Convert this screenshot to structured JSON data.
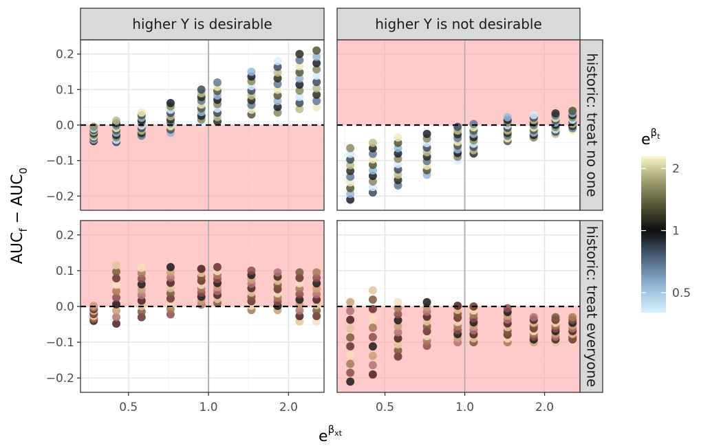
{
  "chart_data": {
    "type": "scatter",
    "facet_columns": [
      "higher Y is desirable",
      "higher Y is not desirable"
    ],
    "facet_rows": [
      "historic: treat no one",
      "historic: treat everyone"
    ],
    "xlabel": {
      "base": "e",
      "sup": "βxt",
      "sup_base": "β",
      "sup_sub": "xt"
    },
    "ylabel": {
      "parts": [
        "AUC",
        "f",
        " − AUC",
        "0"
      ]
    },
    "x_scale": "log",
    "xlim": [
      0.33,
      2.72
    ],
    "ylim": [
      -0.24,
      0.24
    ],
    "x_breaks": [
      0.5,
      1.0,
      2.0
    ],
    "x_tick_labels": [
      "0.5",
      "1.0",
      "2.0"
    ],
    "y_breaks": [
      -0.2,
      -0.1,
      0.0,
      0.1,
      0.2
    ],
    "y_tick_labels": [
      "−0.2",
      "−0.1",
      "0.0",
      "0.1",
      "0.2"
    ],
    "reference_lines": {
      "horizontal_dashed_y": 0.0,
      "vertical_x": 1.0
    },
    "shaded_regions": [
      {
        "panel": "higher Y is desirable / historic: treat no one",
        "y_from": -0.24,
        "y_to": 0.0
      },
      {
        "panel": "higher Y is not desirable / historic: treat no one",
        "y_from": 0.0,
        "y_to": 0.24
      },
      {
        "panel": "higher Y is desirable / historic: treat everyone",
        "y_from": 0.0,
        "y_to": 0.24
      },
      {
        "panel": "higher Y is not desirable / historic: treat everyone",
        "y_from": -0.24,
        "y_to": 0.0
      }
    ],
    "shade_color": "#ff9e9e",
    "x_positions": [
      0.37,
      0.45,
      0.56,
      0.72,
      0.94,
      1.08,
      1.45,
      1.82,
      2.2,
      2.55
    ],
    "panels": [
      {
        "column": "higher Y is desirable",
        "row": "historic: treat no one",
        "color_group": "treat-no-one",
        "columns": [
          {
            "x": 0.37,
            "ymin": -0.045,
            "ymax": -0.005
          },
          {
            "x": 0.45,
            "ymin": -0.048,
            "ymax": 0.012
          },
          {
            "x": 0.56,
            "ymin": -0.03,
            "ymax": 0.035
          },
          {
            "x": 0.72,
            "ymin": -0.022,
            "ymax": 0.062
          },
          {
            "x": 0.94,
            "ymin": 0.005,
            "ymax": 0.1
          },
          {
            "x": 1.08,
            "ymin": 0.01,
            "ymax": 0.12
          },
          {
            "x": 1.45,
            "ymin": 0.03,
            "ymax": 0.15
          },
          {
            "x": 1.82,
            "ymin": 0.035,
            "ymax": 0.18
          },
          {
            "x": 2.2,
            "ymin": 0.045,
            "ymax": 0.2
          },
          {
            "x": 2.55,
            "ymin": 0.05,
            "ymax": 0.21
          }
        ]
      },
      {
        "column": "higher Y is not desirable",
        "row": "historic: treat no one",
        "color_group": "treat-no-one",
        "columns": [
          {
            "x": 0.37,
            "ymin": -0.21,
            "ymax": -0.065
          },
          {
            "x": 0.45,
            "ymin": -0.19,
            "ymax": -0.05
          },
          {
            "x": 0.56,
            "ymin": -0.17,
            "ymax": -0.035
          },
          {
            "x": 0.72,
            "ymin": -0.14,
            "ymax": -0.025
          },
          {
            "x": 0.94,
            "ymin": -0.1,
            "ymax": -0.005
          },
          {
            "x": 1.08,
            "ymin": -0.08,
            "ymax": 0.003
          },
          {
            "x": 1.45,
            "ymin": -0.045,
            "ymax": 0.022
          },
          {
            "x": 1.82,
            "ymin": -0.035,
            "ymax": 0.028
          },
          {
            "x": 2.2,
            "ymin": -0.025,
            "ymax": 0.033
          },
          {
            "x": 2.55,
            "ymin": -0.015,
            "ymax": 0.04
          }
        ]
      },
      {
        "column": "higher Y is desirable",
        "row": "historic: treat everyone",
        "color_group": "treat-everyone",
        "columns": [
          {
            "x": 0.37,
            "ymin": -0.04,
            "ymax": 0.002
          },
          {
            "x": 0.45,
            "ymin": -0.048,
            "ymax": 0.115
          },
          {
            "x": 0.56,
            "ymin": -0.03,
            "ymax": 0.108
          },
          {
            "x": 0.72,
            "ymin": -0.022,
            "ymax": 0.11
          },
          {
            "x": 0.94,
            "ymin": 0.005,
            "ymax": 0.105
          },
          {
            "x": 1.08,
            "ymin": 0.01,
            "ymax": 0.11
          },
          {
            "x": 1.45,
            "ymin": -0.01,
            "ymax": 0.1
          },
          {
            "x": 1.82,
            "ymin": -0.01,
            "ymax": 0.095
          },
          {
            "x": 2.2,
            "ymin": -0.042,
            "ymax": 0.095
          },
          {
            "x": 2.55,
            "ymin": -0.042,
            "ymax": 0.095
          }
        ]
      },
      {
        "column": "higher Y is not desirable",
        "row": "historic: treat everyone",
        "color_group": "treat-everyone",
        "columns": [
          {
            "x": 0.37,
            "ymin": -0.21,
            "ymax": 0.012
          },
          {
            "x": 0.45,
            "ymin": -0.19,
            "ymax": 0.045
          },
          {
            "x": 0.56,
            "ymin": -0.14,
            "ymax": 0.012
          },
          {
            "x": 0.72,
            "ymin": -0.11,
            "ymax": 0.012
          },
          {
            "x": 0.94,
            "ymin": -0.1,
            "ymax": 0.002
          },
          {
            "x": 1.08,
            "ymin": -0.1,
            "ymax": 0.0
          },
          {
            "x": 1.45,
            "ymin": -0.1,
            "ymax": -0.005
          },
          {
            "x": 1.82,
            "ymin": -0.1,
            "ymax": -0.03
          },
          {
            "x": 2.2,
            "ymin": -0.1,
            "ymax": -0.03
          },
          {
            "x": 2.55,
            "ymin": -0.1,
            "ymax": -0.03
          }
        ]
      }
    ],
    "point_palette": {
      "treat-no-one": [
        "#1a1f2a",
        "#3a4a5e",
        "#5f7a95",
        "#95b8d8",
        "#d6ecff",
        "#2b2b1f",
        "#55553a",
        "#8a8a5e",
        "#bdbd8e",
        "#efebc0"
      ],
      "treat-everyone": [
        "#1a1a1a",
        "#4a1f1f",
        "#6b2f2f",
        "#8e4c4c",
        "#b27272",
        "#7a5a3a",
        "#a57a55",
        "#c9a078",
        "#e6c49c",
        "#f7dfc0"
      ]
    },
    "legend": {
      "title": {
        "base": "e",
        "sup": "βt",
        "sup_base": "β",
        "sup_sub": "t"
      },
      "position": "right",
      "type": "colorbar",
      "breaks": [
        0.5,
        1,
        2
      ],
      "labels": [
        "0.5",
        "1",
        "2"
      ],
      "range": [
        0.4,
        2.3
      ],
      "scale": "log",
      "gradient": [
        {
          "value": 0.4,
          "color": "#d8f1ff"
        },
        {
          "value": 0.55,
          "color": "#8fb3d4"
        },
        {
          "value": 0.75,
          "color": "#4a5f78"
        },
        {
          "value": 1.0,
          "color": "#0d0d0d"
        },
        {
          "value": 1.35,
          "color": "#5a5a3a"
        },
        {
          "value": 1.8,
          "color": "#a8a878"
        },
        {
          "value": 2.3,
          "color": "#fbf7cf"
        }
      ]
    }
  }
}
